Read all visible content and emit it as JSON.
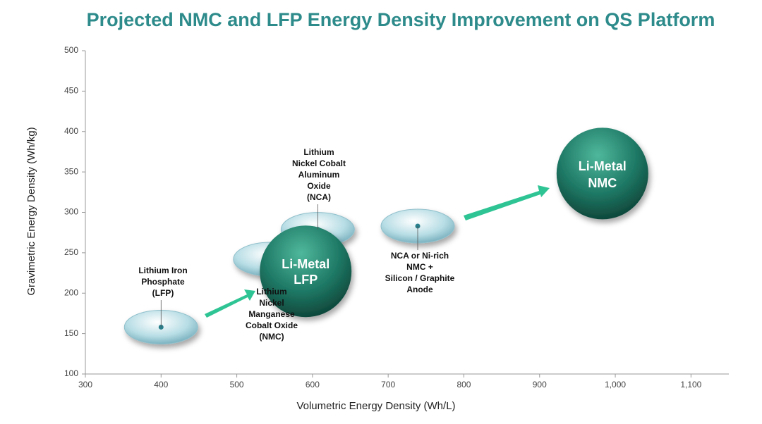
{
  "chart_data": {
    "type": "bubble",
    "title": "Projected NMC and LFP Energy Density Improvement on QS Platform",
    "x_label": "Volumetric Energy Density (Wh/L)",
    "y_label": "Gravimetric Energy Density (Wh/kg)",
    "xlim": [
      300,
      1150
    ],
    "xticks": [
      300,
      400,
      500,
      600,
      700,
      800,
      900,
      {
        "value": 1000,
        "label": "1,000"
      },
      {
        "value": 1100,
        "label": "1,100"
      }
    ],
    "ylim": [
      100,
      500
    ],
    "yticks": [
      100,
      150,
      200,
      250,
      300,
      350,
      400,
      450,
      500
    ],
    "points": [
      {
        "label": [
          "Lithium Iron",
          "Phosphate",
          "(LFP)"
        ],
        "x": 400,
        "y": 158,
        "color": "#a9d3dc"
      },
      {
        "label": [
          "Lithium",
          "Nickel",
          "Manganese",
          "Cobalt Oxide",
          "(NMC)"
        ],
        "x": 544,
        "y": 242,
        "color": "#a9d3dc"
      },
      {
        "label": [
          "Lithium",
          "Nickel Cobalt",
          "Aluminum",
          "Oxide",
          "(NCA)"
        ],
        "x": 607,
        "y": 279,
        "color": "#a9d3dc"
      },
      {
        "label": [
          "NCA or Ni-rich",
          "NMC +",
          "Silicon / Graphite",
          "Anode"
        ],
        "x": 739,
        "y": 283,
        "color": "#a9d3dc"
      },
      {
        "label": [
          "Li-Metal",
          "LFP"
        ],
        "x": 591,
        "y": 227,
        "color": "#1f7a66"
      },
      {
        "label": [
          "Li-Metal",
          "NMC"
        ],
        "x": 983,
        "y": 348,
        "color": "#1f7a66"
      }
    ]
  }
}
